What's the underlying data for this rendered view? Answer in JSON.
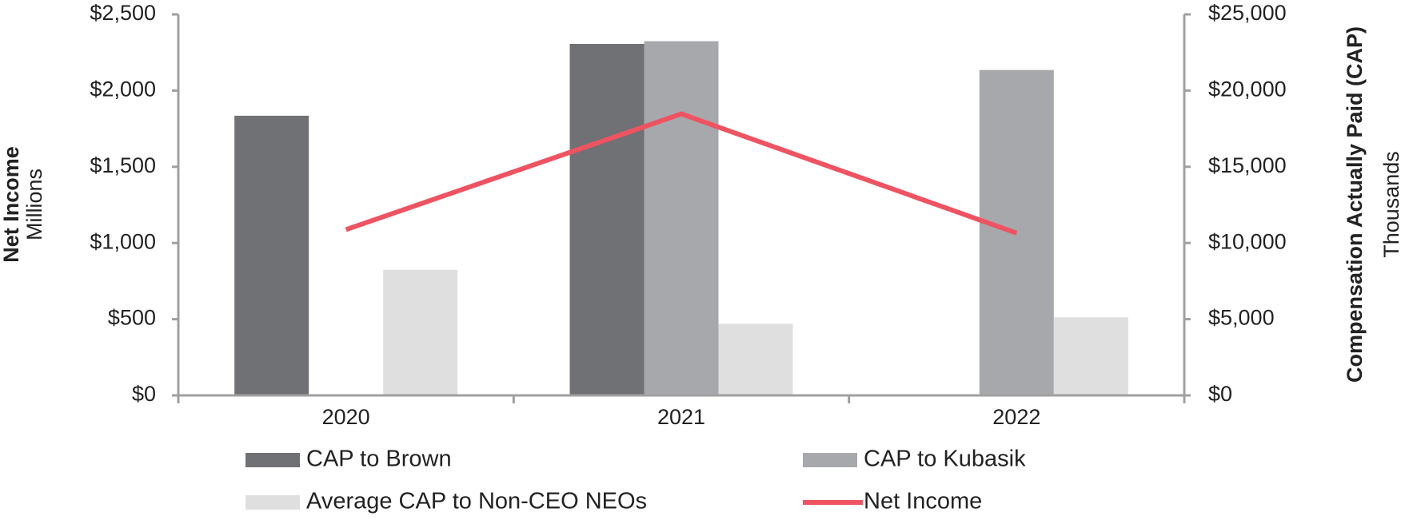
{
  "chart_data": {
    "type": "bar",
    "categories": [
      "2020",
      "2021",
      "2022"
    ],
    "series": [
      {
        "name": "CAP to Brown",
        "color": "#707174",
        "axis": "y2",
        "values": [
          18350,
          23060,
          null
        ]
      },
      {
        "name": "CAP to Kubasik",
        "color": "#a7a8ab",
        "axis": "y2",
        "values": [
          null,
          23240,
          21350
        ]
      },
      {
        "name": "Average CAP to Non-CEO NEOs",
        "color": "#dfdfe0",
        "axis": "y2",
        "values": [
          8240,
          4700,
          5120
        ]
      },
      {
        "name": "Net Income",
        "type": "line",
        "color": "#ef5361",
        "values": [
          1088,
          1847,
          1065
        ]
      }
    ],
    "y_label": "Net Income",
    "y_sublabel": "Millions",
    "y2_label": "Compensation Actually Paid (CAP)",
    "y2_sublabel": "Thousands",
    "ylim": [
      0,
      2500
    ],
    "yticks": [
      {
        "value": 0,
        "label": "$0"
      },
      {
        "value": 500,
        "label": "$500"
      },
      {
        "value": 1000,
        "label": "$1,000"
      },
      {
        "value": 1500,
        "label": "$1,500"
      },
      {
        "value": 2000,
        "label": "$2,000"
      },
      {
        "value": 2500,
        "label": "$2,500"
      }
    ],
    "y2lim": [
      0,
      25000
    ],
    "y2ticks": [
      {
        "value": 0,
        "label": "$0"
      },
      {
        "value": 5000,
        "label": "$5,000"
      },
      {
        "value": 10000,
        "label": "$10,000"
      },
      {
        "value": 15000,
        "label": "$15,000"
      },
      {
        "value": 20000,
        "label": "$20,000"
      },
      {
        "value": 25000,
        "label": "$25,000"
      }
    ],
    "legend": "bottom"
  }
}
